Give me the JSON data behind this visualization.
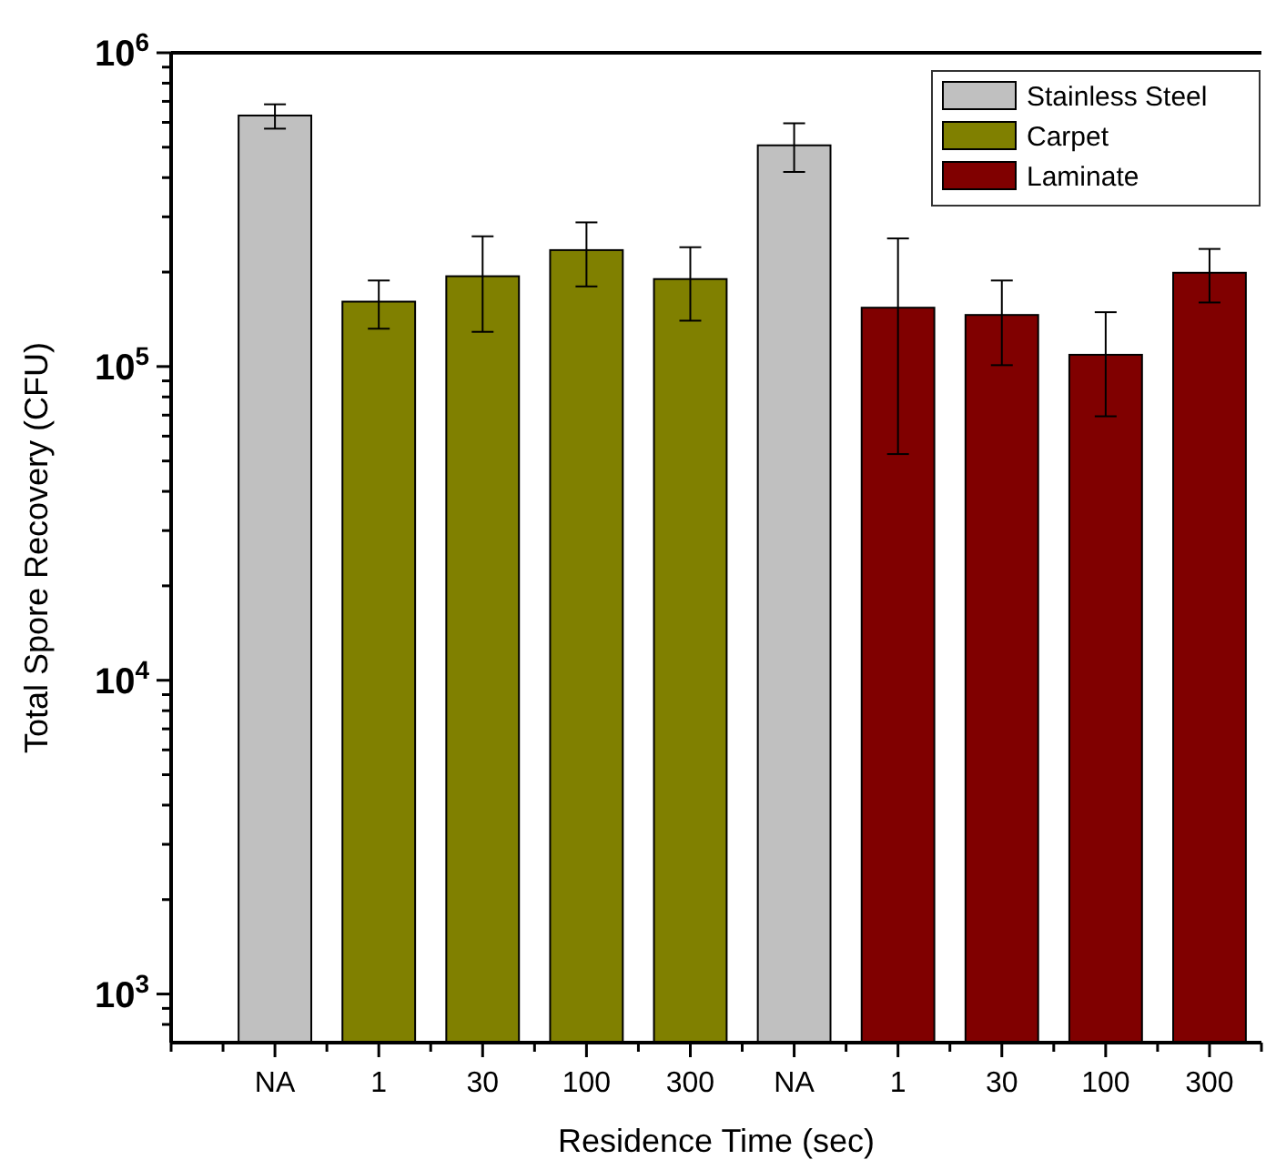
{
  "chart_data": {
    "type": "bar",
    "xlabel": "Residence Time (sec)",
    "ylabel": "Total Spore Recovery (CFU)",
    "categories": [
      "NA",
      "1",
      "30",
      "100",
      "300",
      "NA",
      "1",
      "30",
      "100",
      "300"
    ],
    "series": [
      {
        "name": "Stainless Steel",
        "color": "#c0c0c0",
        "values": [
          631000,
          null,
          null,
          null,
          null,
          507000,
          null,
          null,
          null,
          null
        ],
        "errors": [
          [
            573000,
            685000
          ],
          null,
          null,
          null,
          null,
          [
            417000,
            596000
          ],
          null,
          null,
          null,
          null
        ]
      },
      {
        "name": "Carpet",
        "color": "#808000",
        "values": [
          null,
          161000,
          194000,
          235000,
          190000,
          null,
          null,
          null,
          null,
          null
        ],
        "errors": [
          null,
          [
            132000,
            188000
          ],
          [
            129000,
            260000
          ],
          [
            180000,
            288000
          ],
          [
            140000,
            240000
          ],
          null,
          null,
          null,
          null,
          null
        ]
      },
      {
        "name": "Laminate",
        "color": "#800000",
        "values": [
          null,
          null,
          null,
          null,
          null,
          null,
          154000,
          146000,
          109000,
          199000
        ],
        "errors": [
          null,
          null,
          null,
          null,
          null,
          null,
          [
            52600,
            256000
          ],
          [
            101000,
            188000
          ],
          [
            69400,
            149000
          ],
          [
            160000,
            237000
          ]
        ]
      }
    ],
    "log": true,
    "ylim": [
      700,
      1000000
    ],
    "yticks": [
      {
        "value": 800,
        "label": null
      },
      {
        "value": 900,
        "label": null
      },
      {
        "value": 1000,
        "label": "10$^{3}$"
      },
      {
        "value": 2000,
        "label": null
      },
      {
        "value": 3000,
        "label": null
      },
      {
        "value": 4000,
        "label": null
      },
      {
        "value": 5000,
        "label": null
      },
      {
        "value": 6000,
        "label": null
      },
      {
        "value": 7000,
        "label": null
      },
      {
        "value": 8000,
        "label": null
      },
      {
        "value": 9000,
        "label": null
      },
      {
        "value": 10000,
        "label": "10$^{4}$"
      },
      {
        "value": 20000,
        "label": null
      },
      {
        "value": 30000,
        "label": null
      },
      {
        "value": 40000,
        "label": null
      },
      {
        "value": 50000,
        "label": null
      },
      {
        "value": 60000,
        "label": null
      },
      {
        "value": 70000,
        "label": null
      },
      {
        "value": 80000,
        "label": null
      },
      {
        "value": 90000,
        "label": null
      },
      {
        "value": 100000,
        "label": "10$^{5}$"
      },
      {
        "value": 200000,
        "label": null
      },
      {
        "value": 300000,
        "label": null
      },
      {
        "value": 400000,
        "label": null
      },
      {
        "value": 500000,
        "label": null
      },
      {
        "value": 600000,
        "label": null
      },
      {
        "value": 700000,
        "label": null
      },
      {
        "value": 800000,
        "label": null
      },
      {
        "value": 900000,
        "label": null
      },
      {
        "value": 1000000,
        "label": "10$^{6}$"
      }
    ],
    "legend": "top right",
    "grid": false
  }
}
